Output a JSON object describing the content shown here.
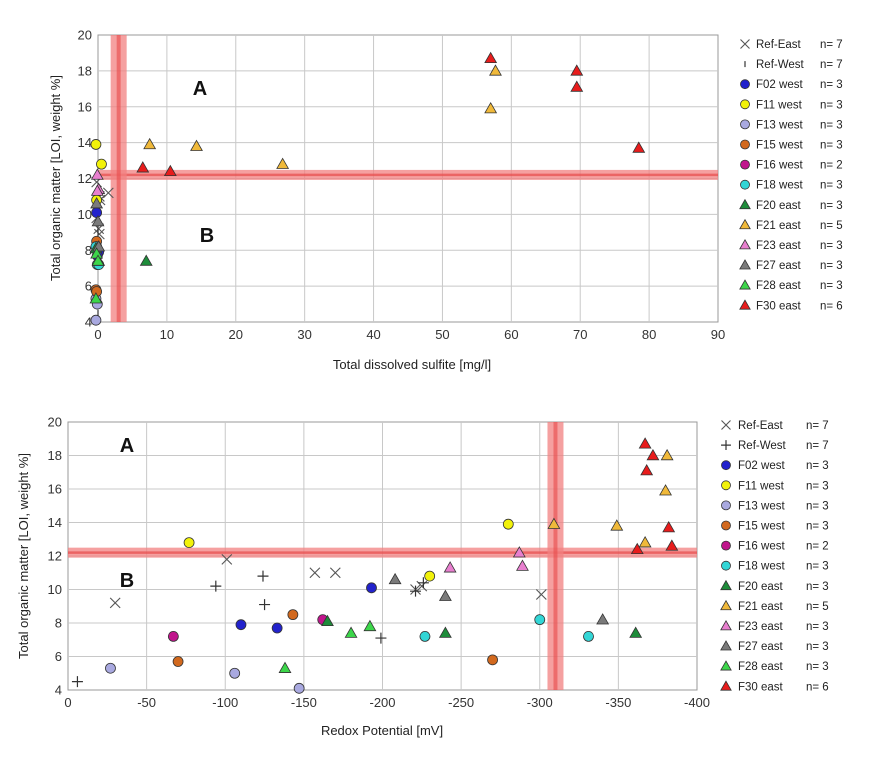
{
  "colors": {
    "Ref-East": "#444444",
    "Ref-West": "#444444",
    "F02 west": "#2222cc",
    "F11 west": "#f2f20a",
    "F13 west": "#a9a9e0",
    "F15 west": "#d2691e",
    "F16 west": "#c0158c",
    "F18 west": "#33d6d6",
    "F20 east": "#1e8c3a",
    "F21 east": "#f0b93a",
    "F23 east": "#e87fcf",
    "F27 east": "#7a7a7a",
    "F28 east": "#3cd64a",
    "F30 east": "#e81c1c",
    "threshold_band": "#f28080"
  },
  "chart_data": [
    {
      "type": "scatter",
      "title": "",
      "xlabel": "Total dissolved sulfite  [mg/l]",
      "ylabel": "Total organic matter  [LOI, weight %]",
      "xlim": [
        0,
        90
      ],
      "ylim": [
        4,
        20
      ],
      "xticks": [
        "0",
        "10",
        "20",
        "30",
        "40",
        "50",
        "60",
        "70",
        "80",
        "90"
      ],
      "yticks": [
        "4",
        "6",
        "8",
        "10",
        "12",
        "14",
        "16",
        "18",
        "20"
      ],
      "grid": true,
      "legend": "right",
      "zones": [
        "A",
        "B"
      ],
      "thresholds": {
        "x": 3,
        "y": 12.2
      },
      "series": [
        {
          "name": "Ref-East",
          "count": "n= 7",
          "marker": "x",
          "points": [
            [
              -0.2,
              11.8
            ],
            [
              1.5,
              11.2
            ],
            [
              0.2,
              11.0
            ],
            [
              0.3,
              10.8
            ],
            [
              -0.2,
              9.8
            ],
            [
              0.1,
              9.2
            ],
            [
              0.2,
              8.9
            ]
          ]
        },
        {
          "name": "Ref-West",
          "count": "n= 7",
          "marker": "tick",
          "points": [
            [
              0,
              10.9
            ],
            [
              0,
              10.3
            ],
            [
              0,
              10.0
            ],
            [
              0,
              9.2
            ],
            [
              0,
              9.0
            ],
            [
              0,
              7.1
            ],
            [
              0,
              4.5
            ]
          ]
        },
        {
          "name": "F02 west",
          "count": "n= 3",
          "marker": "circle",
          "points": [
            [
              -0.2,
              10.1
            ],
            [
              0.1,
              7.9
            ],
            [
              -0.1,
              7.7
            ]
          ]
        },
        {
          "name": "F11 west",
          "count": "n= 3",
          "marker": "circle",
          "points": [
            [
              -0.3,
              13.9
            ],
            [
              0.5,
              12.8
            ],
            [
              -0.2,
              10.8
            ]
          ]
        },
        {
          "name": "F13 west",
          "count": "n= 3",
          "marker": "circle",
          "points": [
            [
              -0.3,
              5.3
            ],
            [
              -0.1,
              5.0
            ],
            [
              -0.3,
              4.1
            ]
          ]
        },
        {
          "name": "F15 west",
          "count": "n= 3",
          "marker": "circle",
          "points": [
            [
              -0.2,
              8.5
            ],
            [
              -0.3,
              5.8
            ],
            [
              -0.2,
              5.7
            ]
          ]
        },
        {
          "name": "F16 west",
          "count": "n= 2",
          "marker": "circle",
          "points": [
            [
              -0.2,
              8.2
            ],
            [
              0,
              7.2
            ]
          ]
        },
        {
          "name": "F18 west",
          "count": "n= 3",
          "marker": "circle",
          "points": [
            [
              -0.3,
              8.2
            ],
            [
              -0.1,
              7.2
            ],
            [
              0.1,
              7.2
            ]
          ]
        },
        {
          "name": "F20 east",
          "count": "n= 3",
          "marker": "triangle",
          "points": [
            [
              7,
              7.4
            ],
            [
              -0.3,
              8.1
            ],
            [
              0.1,
              7.4
            ]
          ]
        },
        {
          "name": "F21 east",
          "count": "n= 5",
          "marker": "triangle",
          "points": [
            [
              7.5,
              13.9
            ],
            [
              14.3,
              13.8
            ],
            [
              26.8,
              12.8
            ],
            [
              57,
              15.9
            ],
            [
              57.7,
              18
            ]
          ]
        },
        {
          "name": "F23 east",
          "count": "n= 3",
          "marker": "triangle",
          "points": [
            [
              -0.1,
              12.2
            ],
            [
              0.1,
              11.4
            ],
            [
              -0.1,
              11.3
            ]
          ]
        },
        {
          "name": "F27 east",
          "count": "n= 3",
          "marker": "triangle",
          "points": [
            [
              -0.2,
              10.6
            ],
            [
              0,
              9.6
            ],
            [
              0.1,
              8.2
            ]
          ]
        },
        {
          "name": "F28 east",
          "count": "n= 3",
          "marker": "triangle",
          "points": [
            [
              -0.2,
              7.8
            ],
            [
              0,
              7.4
            ],
            [
              -0.3,
              5.3
            ]
          ]
        },
        {
          "name": "F30 east",
          "count": "n= 6",
          "marker": "triangle",
          "points": [
            [
              6.5,
              12.6
            ],
            [
              10.5,
              12.4
            ],
            [
              57,
              18.7
            ],
            [
              69.5,
              18
            ],
            [
              69.5,
              17.1
            ],
            [
              78.5,
              13.7
            ]
          ]
        }
      ]
    },
    {
      "type": "scatter",
      "title": "",
      "xlabel": "Redox Potential  [mV]",
      "ylabel": "Total organic matter  [LOI, weight %]",
      "xlim": [
        0,
        -400
      ],
      "ylim": [
        4,
        20
      ],
      "xticks": [
        "0",
        "-50",
        "-100",
        "-150",
        "-200",
        "-250",
        "-300",
        "-350",
        "-400"
      ],
      "yticks": [
        "4",
        "6",
        "8",
        "10",
        "12",
        "14",
        "16",
        "18",
        "20"
      ],
      "grid": true,
      "legend": "right",
      "zones": [
        "A",
        "B"
      ],
      "thresholds": {
        "x": -310,
        "y": 12.2
      },
      "series": [
        {
          "name": "Ref-East",
          "count": "n= 7",
          "marker": "x",
          "points": [
            [
              -30,
              9.2
            ],
            [
              -101,
              11.8
            ],
            [
              -157,
              11.0
            ],
            [
              -170,
              11.0
            ],
            [
              -221,
              10.0
            ],
            [
              -225,
              10.2
            ],
            [
              -301,
              9.7
            ]
          ]
        },
        {
          "name": "Ref-West",
          "count": "n= 7",
          "marker": "plus",
          "points": [
            [
              -6,
              4.5
            ],
            [
              -94,
              10.2
            ],
            [
              -124,
              10.8
            ],
            [
              -125,
              9.1
            ],
            [
              -199,
              7.1
            ],
            [
              -221,
              9.9
            ],
            [
              -226,
              10.4
            ]
          ]
        },
        {
          "name": "F02 west",
          "count": "n= 3",
          "marker": "circle",
          "points": [
            [
              -110,
              7.9
            ],
            [
              -133,
              7.7
            ],
            [
              -193,
              10.1
            ]
          ]
        },
        {
          "name": "F11 west",
          "count": "n= 3",
          "marker": "circle",
          "points": [
            [
              -77,
              12.8
            ],
            [
              -230,
              10.8
            ],
            [
              -280,
              13.9
            ]
          ]
        },
        {
          "name": "F13 west",
          "count": "n= 3",
          "marker": "circle",
          "points": [
            [
              -27,
              5.3
            ],
            [
              -106,
              5.0
            ],
            [
              -147,
              4.1
            ]
          ]
        },
        {
          "name": "F15 west",
          "count": "n= 3",
          "marker": "circle",
          "points": [
            [
              -70,
              5.7
            ],
            [
              -143,
              8.5
            ],
            [
              -270,
              5.8
            ]
          ]
        },
        {
          "name": "F16 west",
          "count": "n= 2",
          "marker": "circle",
          "points": [
            [
              -67,
              7.2
            ],
            [
              -162,
              8.2
            ]
          ]
        },
        {
          "name": "F18 west",
          "count": "n= 3",
          "marker": "circle",
          "points": [
            [
              -227,
              7.2
            ],
            [
              -300,
              8.2
            ],
            [
              -331,
              7.2
            ]
          ]
        },
        {
          "name": "F20 east",
          "count": "n= 3",
          "marker": "triangle",
          "points": [
            [
              -165,
              8.1
            ],
            [
              -240,
              7.4
            ],
            [
              -361,
              7.4
            ]
          ]
        },
        {
          "name": "F21 east",
          "count": "n= 5",
          "marker": "triangle",
          "points": [
            [
              -309,
              13.9
            ],
            [
              -349,
              13.8
            ],
            [
              -367,
              12.8
            ],
            [
              -380,
              15.9
            ],
            [
              -381,
              18
            ]
          ]
        },
        {
          "name": "F23 east",
          "count": "n= 3",
          "marker": "triangle",
          "points": [
            [
              -243,
              11.3
            ],
            [
              -287,
              12.2
            ],
            [
              -289,
              11.4
            ]
          ]
        },
        {
          "name": "F27 east",
          "count": "n= 3",
          "marker": "triangle",
          "points": [
            [
              -208,
              10.6
            ],
            [
              -240,
              9.6
            ],
            [
              -340,
              8.2
            ]
          ]
        },
        {
          "name": "F28 east",
          "count": "n= 3",
          "marker": "triangle",
          "points": [
            [
              -138,
              5.3
            ],
            [
              -180,
              7.4
            ],
            [
              -192,
              7.8
            ]
          ]
        },
        {
          "name": "F30 east",
          "count": "n= 6",
          "marker": "triangle",
          "points": [
            [
              -362,
              12.4
            ],
            [
              -367,
              18.7
            ],
            [
              -368,
              17.1
            ],
            [
              -372,
              18.0
            ],
            [
              -382,
              13.7
            ],
            [
              -384,
              12.6
            ]
          ]
        }
      ]
    }
  ]
}
